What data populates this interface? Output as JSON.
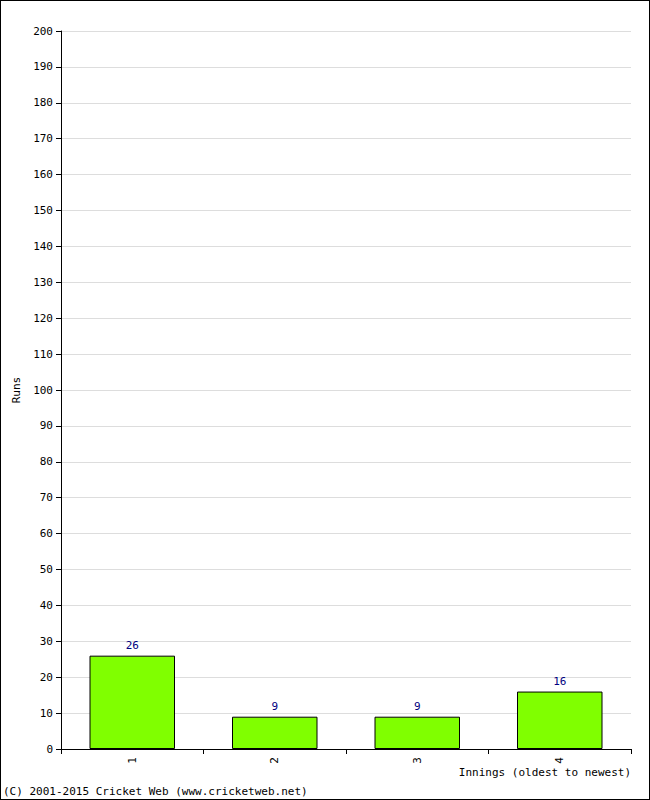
{
  "chart_data": {
    "type": "bar",
    "x_label": "Innings (oldest to newest)",
    "y_label": "Runs",
    "categories": [
      "1",
      "2",
      "3",
      "4"
    ],
    "values": [
      26,
      9,
      9,
      16
    ],
    "color": "#80ff00",
    "ylim": [
      0,
      200
    ],
    "yticks": [
      0,
      10,
      20,
      30,
      40,
      50,
      60,
      70,
      80,
      90,
      100,
      110,
      120,
      130,
      140,
      150,
      160,
      170,
      180,
      190,
      200
    ],
    "grid": true,
    "data_labels": true,
    "annotations": [
      "(C) 2001-2015 Cricket Web (www.cricketweb.net)"
    ]
  }
}
